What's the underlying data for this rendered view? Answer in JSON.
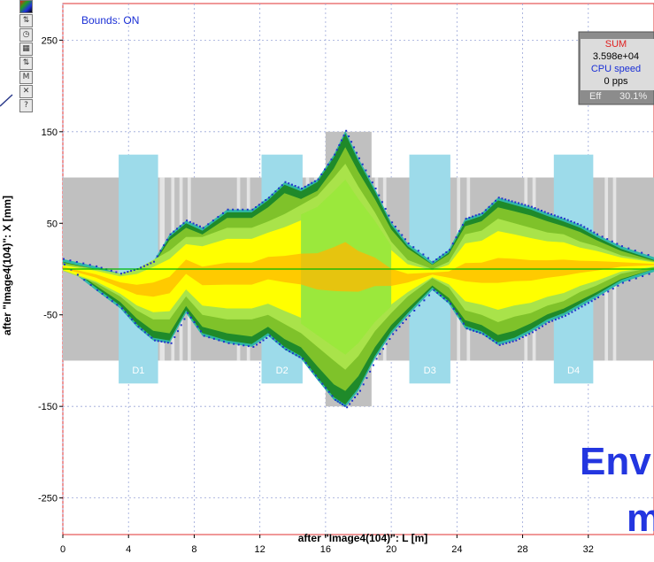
{
  "chart_data": {
    "type": "area",
    "xlabel": "after \"Image4(104)\": L [m]",
    "ylabel": "after \"Image4(104)\": X [mm]",
    "xlim": [
      0,
      36
    ],
    "ylim": [
      -290,
      290
    ],
    "x_ticks": [
      0,
      4,
      8,
      12,
      16,
      20,
      24,
      28,
      32
    ],
    "y_ticks": [
      250,
      150,
      50,
      -50,
      -150,
      -250
    ],
    "grid": true,
    "bounds_label": "Bounds: ON",
    "aperture_mm": 100,
    "wide_aperture": {
      "x": [
        16.0,
        18.8
      ],
      "half_width": 150
    },
    "dipoles": [
      {
        "label": "D1",
        "x_start": 3.4,
        "x_end": 5.8,
        "half_width": 125
      },
      {
        "label": "D2",
        "x_start": 12.1,
        "x_end": 14.6,
        "half_width": 125
      },
      {
        "label": "D3",
        "x_start": 21.1,
        "x_end": 23.6,
        "half_width": 125
      },
      {
        "label": "D4",
        "x_start": 29.9,
        "x_end": 32.3,
        "half_width": 125
      }
    ],
    "reference_line_y": 0,
    "envelope": {
      "x": [
        0,
        2,
        3.5,
        4.5,
        5.5,
        6.5,
        7.5,
        8.5,
        10,
        11.5,
        12.5,
        13.5,
        14.5,
        15.5,
        16.5,
        17.2,
        18,
        19,
        20,
        21,
        22.5,
        23.5,
        24.5,
        25.5,
        26.5,
        27.5,
        28.5,
        29.5,
        30.5,
        31.5,
        32.5,
        34,
        36
      ],
      "upper": [
        8,
        0,
        -8,
        -3,
        5,
        35,
        50,
        42,
        62,
        62,
        75,
        92,
        85,
        95,
        122,
        148,
        118,
        85,
        48,
        25,
        5,
        18,
        52,
        58,
        75,
        70,
        65,
        58,
        52,
        45,
        35,
        22,
        10
      ],
      "lower": [
        8,
        -20,
        -40,
        -60,
        -75,
        -78,
        -45,
        -70,
        -78,
        -82,
        -70,
        -85,
        -95,
        -118,
        -140,
        -148,
        -130,
        -95,
        -68,
        -48,
        -20,
        -35,
        -62,
        -68,
        -80,
        -75,
        -66,
        -55,
        -48,
        -38,
        -28,
        -12,
        0
      ],
      "core_upper": [
        5,
        0,
        -5,
        0,
        10,
        20,
        35,
        35,
        45,
        45,
        52,
        60,
        70,
        80,
        100,
        115,
        90,
        62,
        30,
        10,
        0,
        8,
        38,
        42,
        55,
        50,
        45,
        40,
        38,
        30,
        25,
        15,
        8
      ],
      "core_lower": [
        -2,
        -15,
        -30,
        -45,
        -55,
        -55,
        -30,
        -50,
        -55,
        -55,
        -50,
        -60,
        -70,
        -85,
        -100,
        -110,
        -95,
        -68,
        -48,
        -30,
        -10,
        -20,
        -45,
        -50,
        -58,
        -52,
        -48,
        -40,
        -35,
        -25,
        -18,
        -5,
        2
      ]
    },
    "colors": {
      "aperture": "#c0c0c0",
      "dipole": "#9ddbea",
      "halo": "#31b8a8",
      "outer": "#1f8a2a",
      "middle": "#7fc22a",
      "inner": "#a9e34a",
      "core": "#ffff00",
      "hot": "#ffb800",
      "centerline": "#00b800",
      "speckle": "#2233cc"
    }
  },
  "summary_box": {
    "title": "SUM",
    "sum_value": "3.598e+04",
    "speed_label": "CPU speed",
    "speed_value": "0 pps",
    "eff_label": "Eff",
    "eff_value": "30.1%"
  },
  "overlay": {
    "line1": "Env",
    "line2": "m"
  },
  "toolbar": {
    "icons": [
      "palette-icon",
      "two-arrows-icon",
      "clock-icon",
      "grid-icon",
      "two-arrows-icon",
      "mc-icon",
      "cancel-icon",
      "help-icon"
    ],
    "glyphs": [
      "▣",
      "⇅",
      "◷",
      "▦",
      "⇅",
      "M",
      "✕",
      "?"
    ]
  }
}
